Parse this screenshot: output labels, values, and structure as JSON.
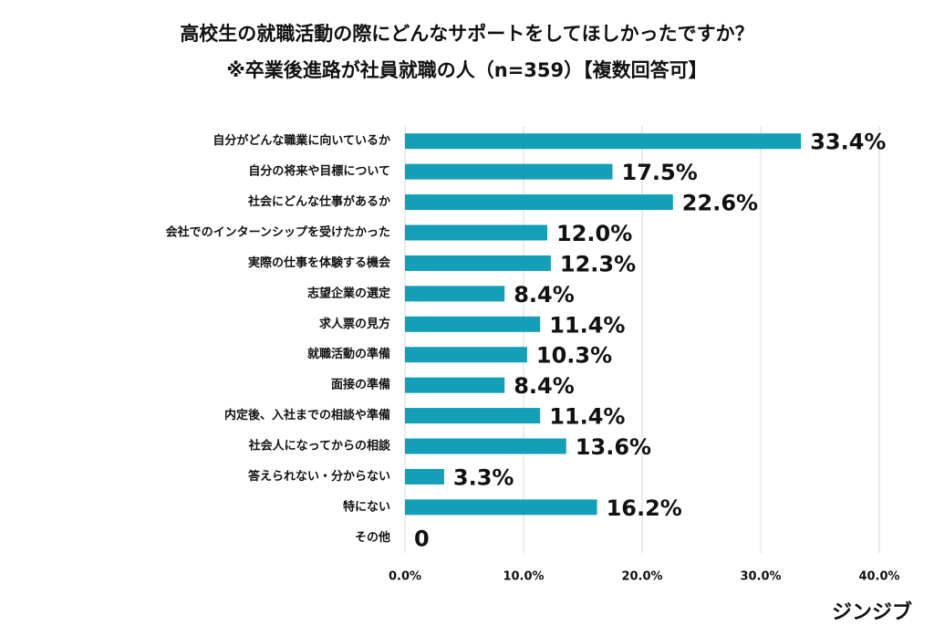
{
  "chart_data": {
    "type": "bar",
    "orientation": "horizontal",
    "title": "高校生の就職活動の際にどんなサポートをしてほしかったですか？",
    "subtitle": "※卒業後進路が社員就職の人（n=359）【複数回答可】",
    "categories": [
      "自分がどんな職業に向いているか",
      "自分の将来や目標について",
      "社会にどんな仕事があるか",
      "会社でのインターンシップを受けたかった",
      "実際の仕事を体験する機会",
      "志望企業の選定",
      "求人票の見方",
      "就職活動の準備",
      "面接の準備",
      "内定後、入社までの相談や準備",
      "社会人になってからの相談",
      "答えられない・分からない",
      "特にない",
      "その他"
    ],
    "values": [
      33.4,
      17.5,
      22.6,
      12.0,
      12.3,
      8.4,
      11.4,
      10.3,
      8.4,
      11.4,
      13.6,
      3.3,
      16.2,
      0
    ],
    "value_labels": [
      "33.4%",
      "17.5%",
      "22.6%",
      "12.0%",
      "12.3%",
      "8.4%",
      "11.4%",
      "10.3%",
      "8.4%",
      "11.4%",
      "13.6%",
      "3.3%",
      "16.2%",
      "0"
    ],
    "color": "#129fb7",
    "xlim": [
      0,
      40
    ],
    "xticks": [
      {
        "value": 0,
        "label": "0.0%"
      },
      {
        "value": 10,
        "label": "10.0%"
      },
      {
        "value": 20,
        "label": "20.0%"
      },
      {
        "value": 30,
        "label": "30.0%"
      },
      {
        "value": 40,
        "label": "40.0%"
      }
    ],
    "grid": true
  },
  "brand": "ジンジブ"
}
